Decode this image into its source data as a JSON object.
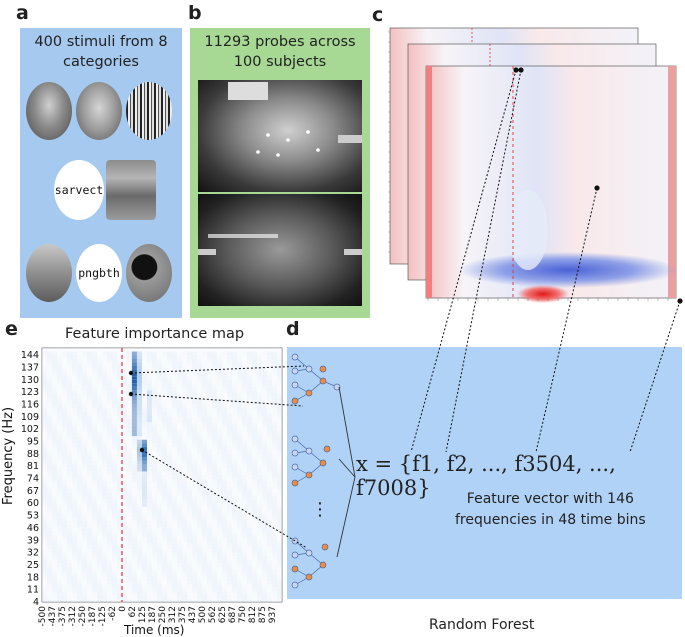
{
  "panels": {
    "a": {
      "letter": "a",
      "title_line1": "400 stimuli from 8",
      "title_line2": "categories",
      "words": [
        "sarvect",
        "pngbth"
      ]
    },
    "b": {
      "letter": "b",
      "title_line1": "11293 probes across",
      "title_line2": "100 subjects"
    },
    "c": {
      "letter": "c"
    },
    "d": {
      "letter": "d",
      "equation": "x = {f1, f2, ..., f3504, ..., f7008}",
      "caption_line1": "Feature vector with 146",
      "caption_line2": "frequencies in 48 time bins",
      "bottom_label": "Random Forest",
      "dots": "⋮"
    },
    "e": {
      "letter": "e",
      "title": "Feature importance map",
      "ylabel": "Frequency (Hz)",
      "xlabel": "Time (ms)"
    }
  },
  "chart_data": {
    "type": "heatmap",
    "title": "Feature importance map",
    "xlabel": "Time (ms)",
    "ylabel": "Frequency (Hz)",
    "x_ticks": [
      "-500",
      "-437",
      "-375",
      "-312",
      "-250",
      "-187",
      "-125",
      "-62",
      "0",
      "62",
      "125",
      "187",
      "250",
      "312",
      "375",
      "437",
      "500",
      "562",
      "625",
      "687",
      "750",
      "812",
      "875",
      "937"
    ],
    "y_ticks": [
      "144",
      "137",
      "130",
      "123",
      "116",
      "109",
      "102",
      "95",
      "88",
      "81",
      "74",
      "67",
      "60",
      "53",
      "46",
      "39",
      "32",
      "25",
      "18",
      "11",
      "4"
    ],
    "stimulus_onset_ms": 0,
    "hotspots": [
      {
        "time_ms": 62,
        "freq_hz_range": [
          102,
          144
        ],
        "importance": "high"
      },
      {
        "time_ms": 125,
        "freq_hz_range": [
          81,
          95
        ],
        "importance": "medium"
      }
    ],
    "colors": {
      "cmap": "Blues",
      "onset_line": "#e83030"
    }
  }
}
